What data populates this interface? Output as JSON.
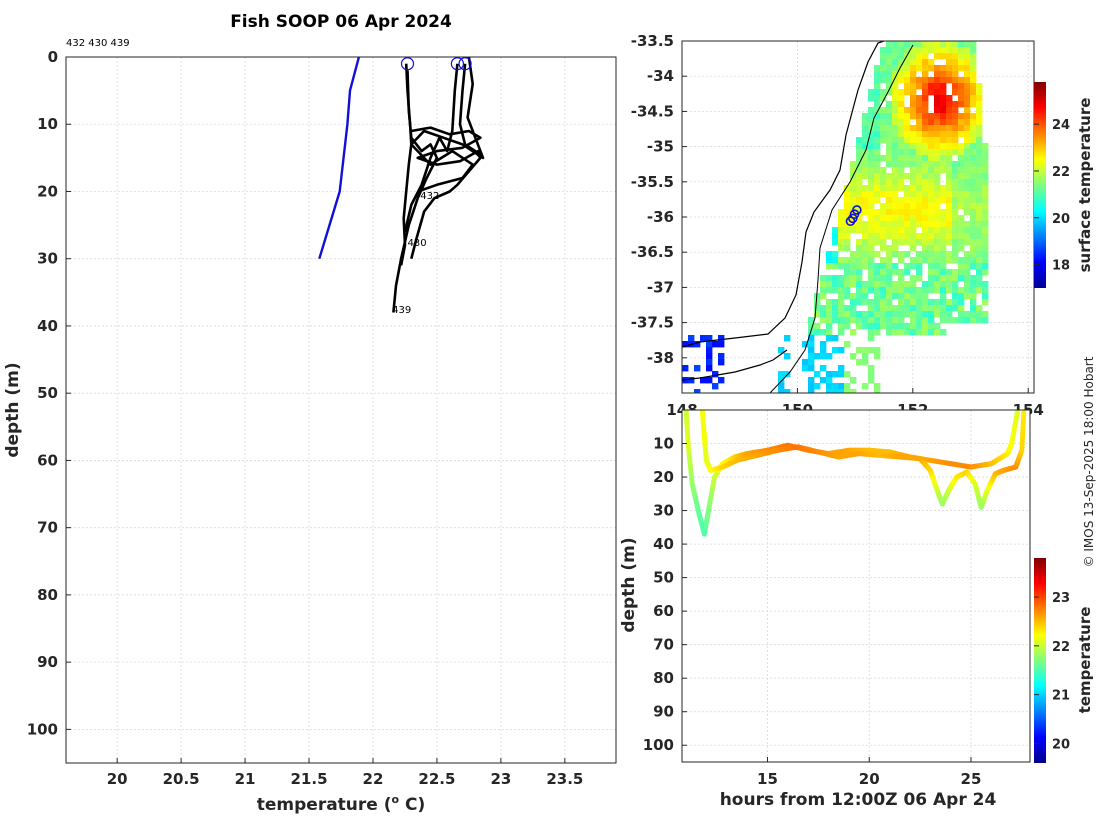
{
  "chart_data": [
    {
      "id": "profile",
      "type": "line",
      "title": "Fish SOOP 06 Apr 2024",
      "top_label": "432 430 439",
      "xlabel": "temperature (° C)",
      "xlabel_pre": "temperature (",
      "xlabel_sup": "o",
      "xlabel_post": " C)",
      "ylabel": "depth (m)",
      "xlim": [
        19.6,
        23.9
      ],
      "ylim": [
        0,
        105
      ],
      "yreversed": true,
      "xticks": [
        20,
        20.5,
        21,
        21.5,
        22,
        22.5,
        23,
        23.5
      ],
      "xtick_labels": [
        "20",
        "20.5",
        "21",
        "21.5",
        "22",
        "22.5",
        "23",
        "23.5"
      ],
      "yticks": [
        0,
        10,
        20,
        30,
        40,
        50,
        60,
        70,
        80,
        90,
        100
      ],
      "ytick_labels": [
        "0",
        "10",
        "20",
        "30",
        "40",
        "50",
        "60",
        "70",
        "80",
        "90",
        "100"
      ],
      "grid": true,
      "series": [
        {
          "name": "reference",
          "color": "#1010d8",
          "points": [
            [
              21.89,
              0
            ],
            [
              21.82,
              5
            ],
            [
              21.8,
              10
            ],
            [
              21.74,
              20
            ],
            [
              21.58,
              30
            ]
          ]
        },
        {
          "name": "profile-a",
          "color": "#000000",
          "points": [
            [
              22.26,
              1
            ],
            [
              22.27,
              5
            ],
            [
              22.29,
              10
            ],
            [
              22.3,
              13
            ],
            [
              22.28,
              16
            ],
            [
              22.26,
              20
            ],
            [
              22.24,
              24
            ],
            [
              22.25,
              28
            ],
            [
              22.22,
              31
            ]
          ]
        },
        {
          "name": "profile-b",
          "color": "#000000",
          "points": [
            [
              22.27,
              2
            ],
            [
              22.28,
              8
            ],
            [
              22.3,
              12
            ],
            [
              22.38,
              14
            ],
            [
              22.45,
              13
            ],
            [
              22.5,
              15
            ],
            [
              22.42,
              18
            ],
            [
              22.35,
              21
            ],
            [
              22.28,
              25
            ],
            [
              22.22,
              30
            ],
            [
              22.18,
              34
            ],
            [
              22.16,
              38
            ]
          ]
        },
        {
          "name": "profile-c",
          "color": "#000000",
          "points": [
            [
              22.66,
              1
            ],
            [
              22.64,
              5
            ],
            [
              22.62,
              11
            ],
            [
              22.58,
              14
            ],
            [
              22.52,
              12
            ],
            [
              22.45,
              15
            ],
            [
              22.38,
              19
            ],
            [
              22.3,
              22
            ],
            [
              22.25,
              26
            ]
          ]
        },
        {
          "name": "profile-d",
          "color": "#000000",
          "points": [
            [
              22.72,
              1
            ],
            [
              22.7,
              5
            ],
            [
              22.68,
              10
            ],
            [
              22.72,
              13
            ],
            [
              22.8,
              14
            ],
            [
              22.84,
              15
            ],
            [
              22.75,
              17
            ],
            [
              22.66,
              19
            ],
            [
              22.6,
              20
            ],
            [
              22.48,
              21
            ],
            [
              22.4,
              23
            ],
            [
              22.34,
              27
            ],
            [
              22.3,
              30
            ]
          ]
        },
        {
          "name": "profile-e",
          "color": "#000000",
          "points": [
            [
              22.75,
              0
            ],
            [
              22.78,
              4
            ],
            [
              22.74,
              9
            ],
            [
              22.8,
              12
            ],
            [
              22.86,
              15
            ],
            [
              22.7,
              13
            ],
            [
              22.55,
              12
            ],
            [
              22.4,
              11
            ],
            [
              22.3,
              13
            ],
            [
              22.45,
              16
            ],
            [
              22.62,
              14
            ],
            [
              22.78,
              16
            ],
            [
              22.7,
              18
            ],
            [
              22.5,
              19
            ],
            [
              22.35,
              20
            ]
          ]
        },
        {
          "name": "profile-f",
          "color": "#000000",
          "points": [
            [
              22.3,
              11
            ],
            [
              22.45,
              10.5
            ],
            [
              22.6,
              11.5
            ],
            [
              22.75,
              11
            ],
            [
              22.84,
              12
            ],
            [
              22.7,
              13.5
            ],
            [
              22.5,
              14
            ],
            [
              22.35,
              15
            ],
            [
              22.5,
              16
            ],
            [
              22.68,
              15.5
            ],
            [
              22.82,
              14
            ],
            [
              22.86,
              15
            ]
          ]
        }
      ],
      "markers": [
        {
          "label": "",
          "x": 22.27,
          "y": 1
        },
        {
          "label": "",
          "x": 22.66,
          "y": 1
        },
        {
          "label": "",
          "x": 22.72,
          "y": 1
        }
      ],
      "annotations": [
        {
          "text": "432",
          "x": 22.37,
          "y": 20.5
        },
        {
          "text": "430",
          "x": 22.27,
          "y": 27.5
        },
        {
          "text": "439",
          "x": 22.15,
          "y": 37.5
        }
      ]
    },
    {
      "id": "sst-map",
      "type": "heatmap",
      "xlim": [
        148,
        154.1
      ],
      "ylim": [
        -38.5,
        -33.5
      ],
      "xticks": [
        148,
        150,
        152,
        154
      ],
      "xtick_labels": [
        "148",
        "150",
        "152",
        "154"
      ],
      "yticks": [
        -33.5,
        -34,
        -34.5,
        -35,
        -35.5,
        -36,
        -36.5,
        -37,
        -37.5,
        -38
      ],
      "ytick_labels": [
        "-33.5",
        "-34",
        "-34.5",
        "-35",
        "-35.5",
        "-36",
        "-36.5",
        "-37",
        "-37.5",
        "-38"
      ],
      "colorbar_label": "surface temperature",
      "colorbar_range": [
        17,
        25.8
      ],
      "colorbar_ticks": [
        18,
        20,
        22,
        24
      ],
      "colorbar_tick_labels": [
        "18",
        "20",
        "22",
        "24"
      ],
      "deployment_markers": [
        [
          151.03,
          -35.9
        ],
        [
          150.99,
          -35.96
        ],
        [
          150.96,
          -36.02
        ],
        [
          150.92,
          -36.06
        ]
      ]
    },
    {
      "id": "depth-time",
      "type": "scatter",
      "xlabel": "hours from 12:00Z 06 Apr 24",
      "ylabel": "depth (m)",
      "xlim": [
        10.8,
        27.9
      ],
      "ylim": [
        0,
        105
      ],
      "yreversed": true,
      "xticks": [
        15,
        20,
        25
      ],
      "xtick_labels": [
        "15",
        "20",
        "25"
      ],
      "yticks": [
        10,
        20,
        30,
        40,
        50,
        60,
        70,
        80,
        90,
        100
      ],
      "ytick_labels": [
        "10",
        "20",
        "30",
        "40",
        "50",
        "60",
        "70",
        "80",
        "90",
        "100"
      ],
      "colorbar_label": "temperature",
      "colorbar_range": [
        19.6,
        23.8
      ],
      "colorbar_ticks": [
        20,
        21,
        22,
        23
      ],
      "colorbar_tick_labels": [
        "20",
        "21",
        "22",
        "23"
      ],
      "tracks": [
        {
          "points": [
            [
              11.0,
              0
            ],
            [
              11.1,
              10
            ],
            [
              11.3,
              22
            ],
            [
              11.6,
              30
            ],
            [
              11.9,
              37
            ],
            [
              12.1,
              30
            ],
            [
              12.4,
              20
            ],
            [
              12.8,
              16
            ],
            [
              13.4,
              14
            ],
            [
              14,
              13
            ],
            [
              15,
              12
            ],
            [
              16,
              10.5
            ],
            [
              17,
              12
            ],
            [
              18,
              13
            ],
            [
              19,
              12
            ],
            [
              20,
              12
            ],
            [
              21,
              12.5
            ],
            [
              22,
              14
            ],
            [
              23,
              15
            ],
            [
              24,
              16
            ],
            [
              25,
              17
            ],
            [
              26,
              16
            ],
            [
              26.8,
              13
            ],
            [
              27.0,
              10
            ],
            [
              27.3,
              0
            ]
          ],
          "temps": [
            22.0,
            22.1,
            21.8,
            21.6,
            21.5,
            21.7,
            22.0,
            22.2,
            22.4,
            22.6,
            22.7,
            22.8,
            22.7,
            22.6,
            22.6,
            22.5,
            22.5,
            22.6,
            22.6,
            22.7,
            22.7,
            22.5,
            22.3,
            22.2,
            22.1
          ]
        },
        {
          "points": [
            [
              11.8,
              0
            ],
            [
              11.9,
              8
            ],
            [
              12.0,
              15
            ],
            [
              12.2,
              18
            ],
            [
              12.8,
              17
            ],
            [
              13.5,
              15
            ],
            [
              14.5,
              13.5
            ],
            [
              15.5,
              12
            ],
            [
              16.5,
              11
            ],
            [
              17.5,
              12.5
            ],
            [
              18.5,
              14
            ],
            [
              19.5,
              13
            ],
            [
              20.5,
              13.5
            ],
            [
              21.5,
              14
            ],
            [
              22.5,
              14.5
            ],
            [
              23.0,
              18
            ],
            [
              23.4,
              25
            ],
            [
              23.6,
              28
            ],
            [
              23.9,
              24
            ],
            [
              24.3,
              20
            ],
            [
              24.8,
              18.5
            ],
            [
              25.2,
              22
            ],
            [
              25.5,
              29
            ],
            [
              25.8,
              24
            ],
            [
              26.2,
              19
            ],
            [
              26.6,
              18
            ],
            [
              27.2,
              17
            ],
            [
              27.5,
              12
            ],
            [
              27.6,
              0
            ]
          ],
          "temps": [
            22.2,
            22.2,
            22.1,
            22.2,
            22.4,
            22.5,
            22.6,
            22.7,
            22.8,
            22.7,
            22.6,
            22.6,
            22.5,
            22.6,
            22.6,
            22.4,
            22.0,
            21.8,
            22.0,
            22.3,
            22.4,
            22.1,
            21.8,
            22.1,
            22.5,
            22.6,
            22.7,
            22.4,
            22.3
          ]
        }
      ]
    }
  ],
  "credit": "© IMOS 13-Sep-2025 18:00 Hobart"
}
